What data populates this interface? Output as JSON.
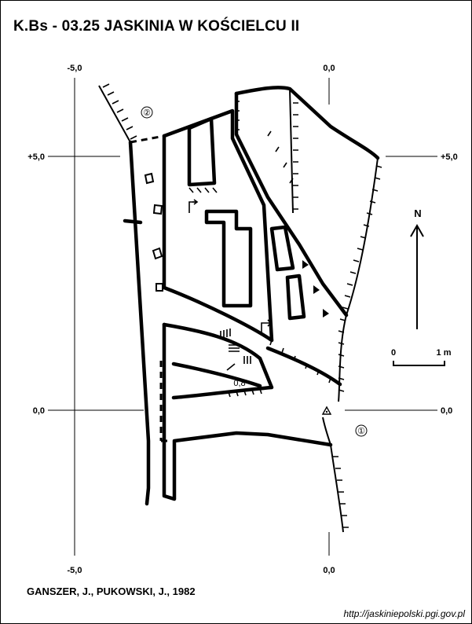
{
  "title": "K.Bs - 03.25  JASKINIA W KOŚCIELCU II",
  "authors": "GANSZER, J., PUKOWSKI, J., 1982",
  "url": "http://jaskiniepolski.pgi.gov.pl",
  "north_label": "N",
  "scale": {
    "zero": "0",
    "length": "1 m"
  },
  "grid_labels": {
    "x_left_top": "-5,0",
    "x_right_top": "0,0",
    "x_left_bottom": "-5,0",
    "x_right_bottom": "0,0",
    "y_upper_left": "+5,0",
    "y_upper_right": "+5,0",
    "y_lower_left": "0,0",
    "y_lower_right": "0,0"
  },
  "entrance_markers": [
    "②",
    "①"
  ],
  "depth_note": "0,8",
  "colors": {
    "ink": "#000000",
    "paper": "#ffffff"
  }
}
